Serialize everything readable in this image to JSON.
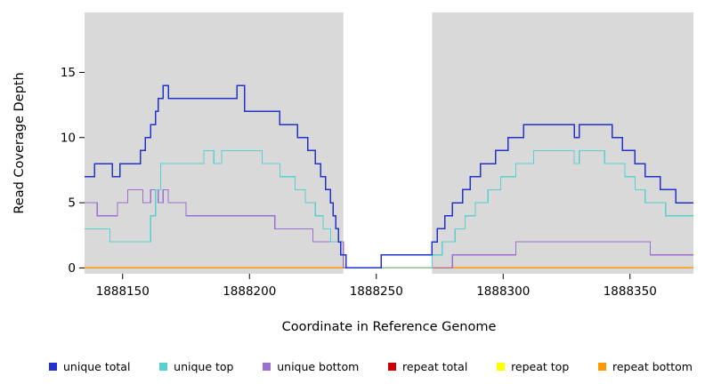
{
  "chart_data": {
    "type": "line",
    "line_style": "step-post",
    "title": "",
    "xlabel": "Coordinate in Reference Genome",
    "ylabel": "Read Coverage Depth",
    "xlim": [
      1888135,
      1888375
    ],
    "ylim": [
      -0.45,
      19.6
    ],
    "x_ticks": [
      1888150,
      1888200,
      1888250,
      1888300,
      1888350
    ],
    "y_ticks": [
      0,
      5,
      10,
      15
    ],
    "panel_bg": "#d9d9d9",
    "grid": false,
    "legend_position": "bottom",
    "no_data_region": {
      "x0": 1888237,
      "x1": 1888272,
      "color": "#ffffff"
    },
    "x_end": 1888375,
    "series": [
      {
        "name": "repeat total",
        "color": "#cc0000",
        "width": 1.3,
        "points": [
          [
            1888135,
            0
          ]
        ]
      },
      {
        "name": "repeat top",
        "color": "#ffff00",
        "width": 1.3,
        "points": [
          [
            1888135,
            0
          ]
        ]
      },
      {
        "name": "repeat bottom",
        "color": "#ff9900",
        "width": 1.4,
        "points": [
          [
            1888135,
            0
          ]
        ]
      },
      {
        "name": "unique bottom",
        "color": "#9b6fd0",
        "width": 1.3,
        "points": [
          [
            1888135,
            5
          ],
          [
            1888140,
            4
          ],
          [
            1888148,
            5
          ],
          [
            1888152,
            6
          ],
          [
            1888158,
            5
          ],
          [
            1888161,
            6
          ],
          [
            1888164,
            5
          ],
          [
            1888166,
            6
          ],
          [
            1888168,
            5
          ],
          [
            1888175,
            4
          ],
          [
            1888210,
            3
          ],
          [
            1888225,
            2
          ],
          [
            1888237,
            0
          ],
          [
            1888280,
            1
          ],
          [
            1888305,
            2
          ],
          [
            1888358,
            1
          ]
        ]
      },
      {
        "name": "unique top",
        "color": "#58d0d0",
        "width": 1.3,
        "points": [
          [
            1888135,
            3
          ],
          [
            1888145,
            2
          ],
          [
            1888161,
            4
          ],
          [
            1888163,
            6
          ],
          [
            1888165,
            8
          ],
          [
            1888182,
            9
          ],
          [
            1888186,
            8
          ],
          [
            1888189,
            9
          ],
          [
            1888205,
            8
          ],
          [
            1888212,
            7
          ],
          [
            1888218,
            6
          ],
          [
            1888222,
            5
          ],
          [
            1888226,
            4
          ],
          [
            1888229,
            3
          ],
          [
            1888232,
            2
          ],
          [
            1888236,
            1
          ],
          [
            1888238,
            0
          ],
          [
            1888272,
            1
          ],
          [
            1888276,
            2
          ],
          [
            1888281,
            3
          ],
          [
            1888285,
            4
          ],
          [
            1888289,
            5
          ],
          [
            1888294,
            6
          ],
          [
            1888299,
            7
          ],
          [
            1888305,
            8
          ],
          [
            1888312,
            9
          ],
          [
            1888328,
            8
          ],
          [
            1888330,
            9
          ],
          [
            1888340,
            8
          ],
          [
            1888348,
            7
          ],
          [
            1888352,
            6
          ],
          [
            1888356,
            5
          ],
          [
            1888364,
            4
          ]
        ]
      },
      {
        "name": "unique total",
        "color": "#2233cc",
        "width": 1.5,
        "points": [
          [
            1888135,
            7
          ],
          [
            1888139,
            8
          ],
          [
            1888146,
            7
          ],
          [
            1888149,
            8
          ],
          [
            1888157,
            9
          ],
          [
            1888159,
            10
          ],
          [
            1888161,
            11
          ],
          [
            1888163,
            12
          ],
          [
            1888164,
            13
          ],
          [
            1888166,
            14
          ],
          [
            1888168,
            13
          ],
          [
            1888195,
            14
          ],
          [
            1888198,
            12
          ],
          [
            1888212,
            11
          ],
          [
            1888219,
            10
          ],
          [
            1888223,
            9
          ],
          [
            1888226,
            8
          ],
          [
            1888228,
            7
          ],
          [
            1888230,
            6
          ],
          [
            1888232,
            5
          ],
          [
            1888233,
            4
          ],
          [
            1888234,
            3
          ],
          [
            1888235,
            2
          ],
          [
            1888236,
            1
          ],
          [
            1888238,
            0
          ],
          [
            1888252,
            1
          ],
          [
            1888272,
            2
          ],
          [
            1888274,
            3
          ],
          [
            1888277,
            4
          ],
          [
            1888280,
            5
          ],
          [
            1888284,
            6
          ],
          [
            1888287,
            7
          ],
          [
            1888291,
            8
          ],
          [
            1888297,
            9
          ],
          [
            1888302,
            10
          ],
          [
            1888308,
            11
          ],
          [
            1888328,
            10
          ],
          [
            1888330,
            11
          ],
          [
            1888343,
            10
          ],
          [
            1888347,
            9
          ],
          [
            1888352,
            8
          ],
          [
            1888356,
            7
          ],
          [
            1888362,
            6
          ],
          [
            1888368,
            5
          ]
        ]
      }
    ],
    "legend": [
      {
        "label": "unique total",
        "color": "#2233cc"
      },
      {
        "label": "unique top",
        "color": "#58d0d0"
      },
      {
        "label": "unique bottom",
        "color": "#9b6fd0"
      },
      {
        "label": "repeat total",
        "color": "#cc0000"
      },
      {
        "label": "repeat top",
        "color": "#ffff00"
      },
      {
        "label": "repeat bottom",
        "color": "#ff9900"
      }
    ]
  }
}
